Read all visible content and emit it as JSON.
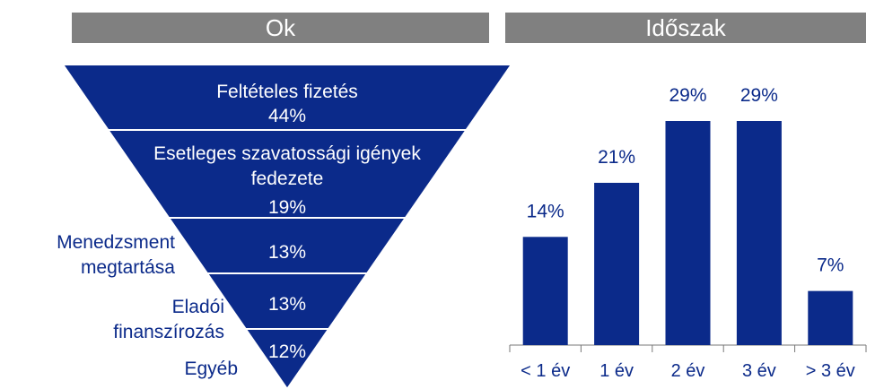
{
  "chart_data": [
    {
      "type": "funnel",
      "title": "Ok",
      "categories": [
        "Feltételes fizetés",
        "Esetleges szavatossági igények fedezete",
        "Menedzsment megtartása",
        "Eladói finanszírozás",
        "Egyéb"
      ],
      "values": [
        44,
        19,
        13,
        13,
        12
      ],
      "value_labels": [
        "44%",
        "19%",
        "13%",
        "13%",
        "12%"
      ],
      "color": "#0b2a8a"
    },
    {
      "type": "bar",
      "title": "Időszak",
      "categories": [
        "< 1 év",
        "1 év",
        "2 év",
        "3 év",
        "> 3 év"
      ],
      "values": [
        14,
        21,
        29,
        29,
        7
      ],
      "value_labels": [
        "14%",
        "21%",
        "29%",
        "29%",
        "7%"
      ],
      "color": "#0b2a8a"
    }
  ]
}
